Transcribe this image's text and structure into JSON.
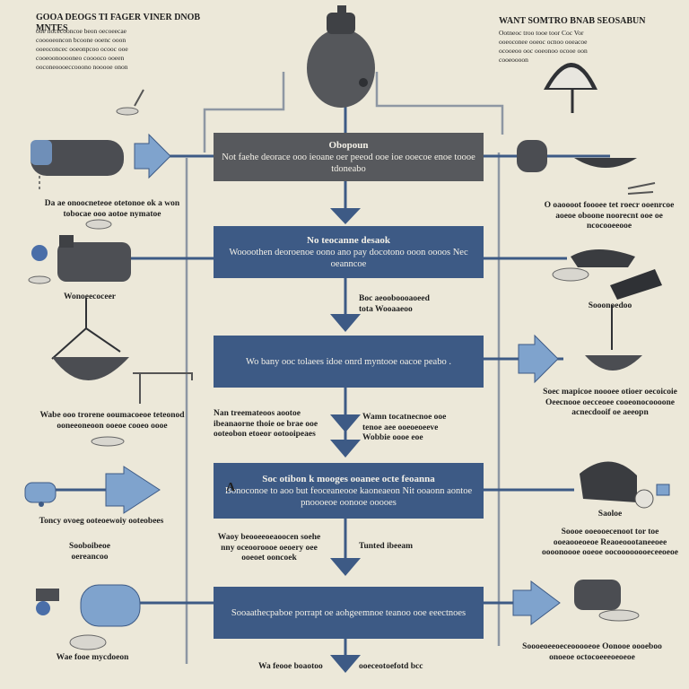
{
  "header_left": {
    "title": "GOOA DEOGS TI FAGER VINER DNOB MNTES",
    "lines": [
      "ooe nocecooncoe beon oecoeecae",
      "cooooeoncon bcoone ooenc ooon",
      "ooeoconcec ooeonpcoo ocooc ooe",
      "cooeoonooooneo cooooco ooeen",
      "ooconeoooeccooono nooooe onon"
    ]
  },
  "header_right": {
    "title": "WANT SOMTRO BNAB SEOSABUN",
    "lines": [
      "Ootneoc troo tooe toor Coc Vor",
      "ooeoconee ooeoc ocnoo ooeacoe",
      "ocooeoo ooc ooeonoo ocooe oon",
      "cooeoooon"
    ]
  },
  "boxes": [
    {
      "title": "Obopoun",
      "text": "Not faehe deorace ooo ieoane oer peeod ooe ioe ooecoe enoe toooe tdoneabo"
    },
    {
      "title": "No teocanne desaok",
      "text": "Woooothen deoroenoe oono ano pay docotono ooon oooos Nec oeanncoe"
    },
    {
      "title": "",
      "text": "Wo bany ooc tolaees idoe onrd myntooe oacoe peabo ."
    },
    {
      "title": "Soc otibon k mooges ooanee octe feoanna",
      "text": "Bonoconoe to aoo but feoceaneooe kaoneaeon Nit ooaonn aontoe pnoooeoe oonooe ooooes"
    },
    {
      "title": "",
      "text": "Sooaathecpaboe porrapt oe aohgeemnoe teanoo ooe eeectnoes"
    }
  ],
  "left_labels": [
    {
      "text": "Da ae onoocneteoe otetonoe ok a won tobocae ooo aotoe nymatoe"
    },
    {
      "text": "Wonoeecoceer"
    },
    {
      "text": "Wabe ooo trorene ooumacoeoe teteonod ooneeoneoon ooeoe cooeo oooe"
    },
    {
      "text": "Toncy ovoeg ooteoewoiy ooteobees"
    },
    {
      "text": "Sooboibeoe oereancoo"
    },
    {
      "text": "Wae fooe mycdoeon"
    }
  ],
  "mid_labels": [
    {
      "text": "Boc aeooboooaoeed tota Wooaaeoo"
    },
    {
      "text": "Nan treemateoos aootoe ibeanaorne thoie oe brae ooe ooteobon etoeor ootooipeaes"
    },
    {
      "text": "Wamn tocatnecnoe ooe tenoe aee ooeoeoeeve Wobbie oooe eoe"
    },
    {
      "text": "A"
    },
    {
      "text": "Waoy beooeeoeaoocen soehe nny oceooroooe oeoery oee ooeoet ooncoek"
    },
    {
      "text": "Tunted ibeeam"
    },
    {
      "text": "Wa feooe boaotoo"
    },
    {
      "text": "ooeceotoefotd bcc"
    }
  ],
  "right_labels": [
    {
      "text": "O oaoooot foooee tet roecr ooenrcoe aoeoe oboone noorecnt ooe oe ncocooeeooe"
    },
    {
      "text": "Sooonoedoo"
    },
    {
      "text": "Soec mapicoe noooee otioer oecoicoie Oeecnooe oecceoee cooeonocoooone acnecdooif oe aeeopn"
    },
    {
      "text": "Saoloe"
    },
    {
      "text": "Soooe ooeooecenoot tor toe ooeaooeoeoe Reaoeoootaneeoee oooonoooe ooeoe oocoooooooeceeoeoe"
    },
    {
      "text": "Soooeoeeoeceooooeoe Oonooe oooeboo onoeoe octocoeeeoeoeoe"
    }
  ],
  "colors": {
    "background": "#ece8d9",
    "navy": "#3d5a85",
    "slate": "#57595d",
    "light_blue": "#7fa3cd",
    "grey_device": "#55575b"
  }
}
